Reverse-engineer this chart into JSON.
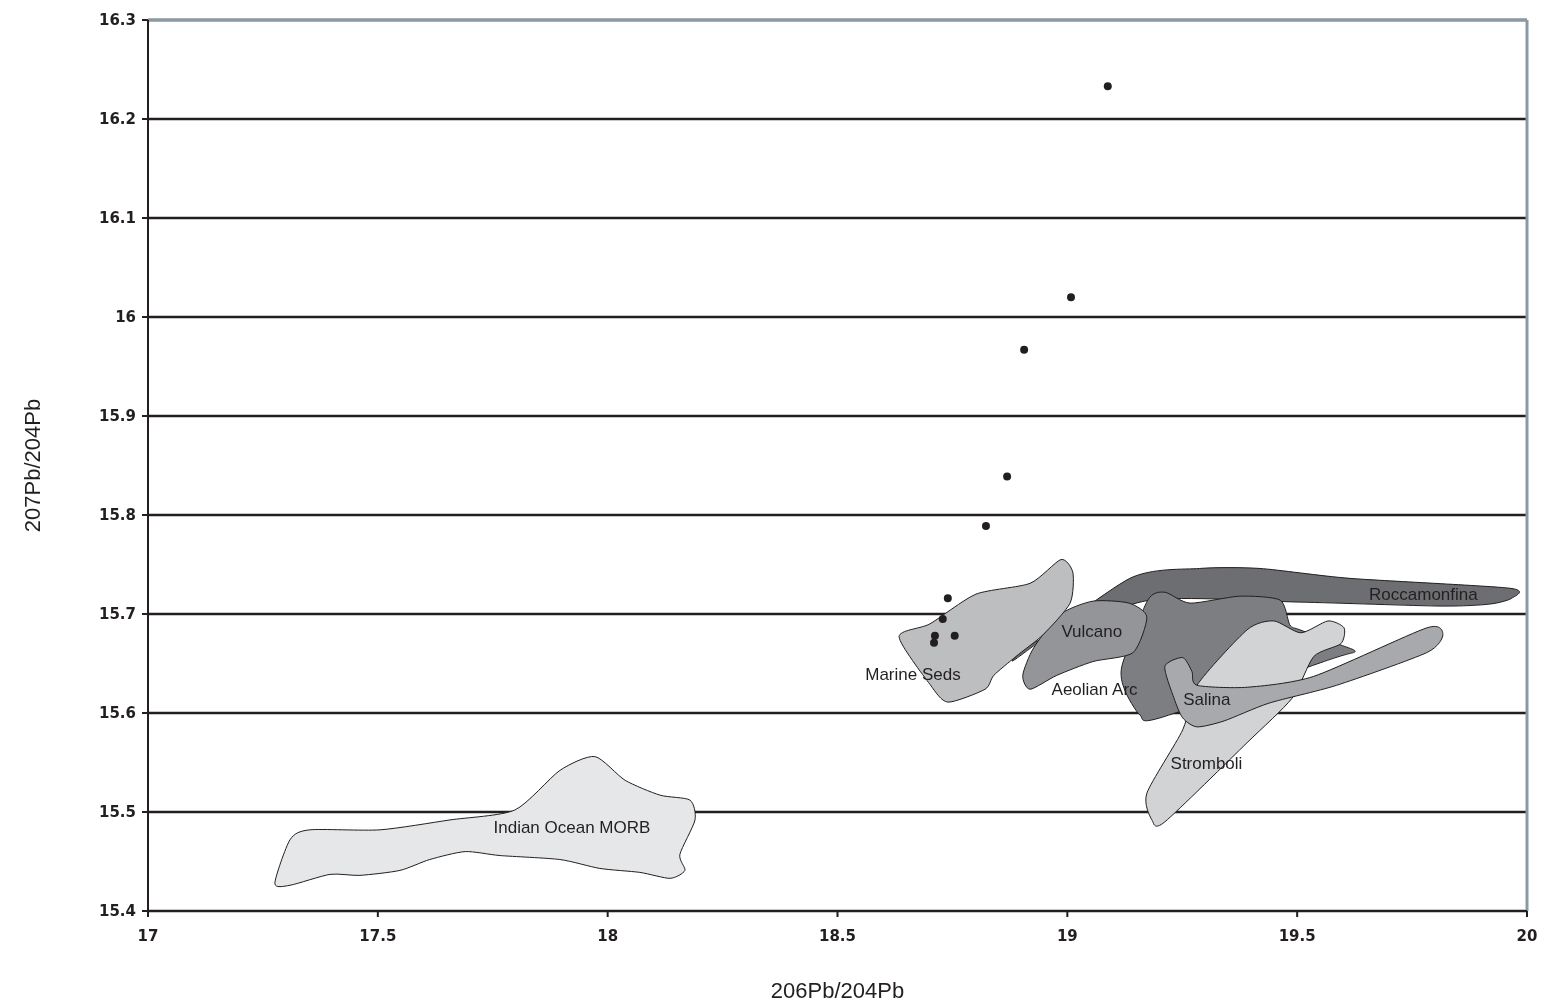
{
  "chart_data": {
    "type": "scatter",
    "xlabel": "206Pb/204Pb",
    "ylabel": "207Pb/204Pb",
    "xlim": [
      17,
      20
    ],
    "ylim": [
      15.4,
      16.3
    ],
    "xticks": [
      17,
      17.5,
      18,
      18.5,
      19,
      19.5,
      20
    ],
    "yticks": [
      15.4,
      15.5,
      15.6,
      15.7,
      15.8,
      15.9,
      16,
      16.1,
      16.2,
      16.3
    ],
    "grid": "y",
    "legend": false,
    "series": [
      {
        "type": "area",
        "name": "Roccamonfina",
        "color": "#6d6e71",
        "x": [
          19.136,
          19.288,
          19.419,
          19.615,
          19.963,
          19.967,
          19.919,
          19.811,
          19.506,
          19.18,
          18.94,
          18.886
        ],
        "values": [
          15.736,
          15.746,
          15.746,
          15.736,
          15.726,
          15.716,
          15.71,
          15.708,
          15.712,
          15.714,
          15.674,
          15.654
        ]
      },
      {
        "type": "area",
        "name": "Aeolian Arc",
        "color": "#7d7e81",
        "x": [
          19.175,
          19.212,
          19.267,
          19.375,
          19.463,
          19.484,
          19.506,
          19.593,
          19.626,
          19.571,
          19.201,
          19.158,
          19.125,
          19.119
        ],
        "values": [
          15.714,
          15.722,
          15.711,
          15.718,
          15.714,
          15.689,
          15.684,
          15.669,
          15.662,
          15.654,
          15.595,
          15.598,
          15.623,
          15.648
        ]
      },
      {
        "type": "area",
        "name": "Vulcano",
        "color": "#939598",
        "x": [
          18.986,
          19.056,
          19.134,
          19.173,
          19.143,
          19.056,
          18.977,
          18.919,
          18.903,
          18.927
        ],
        "values": [
          15.7,
          15.713,
          15.711,
          15.697,
          15.661,
          15.652,
          15.638,
          15.624,
          15.638,
          15.666
        ]
      },
      {
        "type": "area",
        "name": "Marine Seds",
        "color": "#bcbec0",
        "x": [
          18.634,
          18.701,
          18.801,
          18.919,
          18.986,
          19.012,
          19.006,
          18.947,
          18.888,
          18.84,
          18.821,
          18.74,
          18.701
        ],
        "values": [
          15.677,
          15.69,
          15.72,
          15.731,
          15.755,
          15.742,
          15.711,
          15.679,
          15.657,
          15.638,
          15.624,
          15.611,
          15.629
        ]
      },
      {
        "type": "area",
        "name": "Stromboli",
        "color": "#d1d3d4",
        "x": [
          19.282,
          19.391,
          19.449,
          19.508,
          19.567,
          19.602,
          19.595,
          19.536,
          19.489,
          19.391,
          19.212,
          19.184,
          19.173,
          19.251
        ],
        "values": [
          15.628,
          15.684,
          15.693,
          15.681,
          15.693,
          15.686,
          15.67,
          15.657,
          15.615,
          15.57,
          15.49,
          15.492,
          15.519,
          15.583
        ]
      },
      {
        "type": "area",
        "name": "Salina",
        "color": "#a7a9ac",
        "x": [
          19.212,
          19.251,
          19.271,
          19.282,
          19.391,
          19.536,
          19.782,
          19.817,
          19.782,
          19.586,
          19.439,
          19.341,
          19.282,
          19.251,
          19.232
        ],
        "values": [
          15.647,
          15.656,
          15.642,
          15.628,
          15.626,
          15.637,
          15.686,
          15.679,
          15.661,
          15.628,
          15.61,
          15.592,
          15.586,
          15.595,
          15.615
        ]
      },
      {
        "type": "area",
        "name": "Indian Ocean MORB",
        "color": "#e6e7e8",
        "x": [
          17.276,
          17.309,
          17.352,
          17.505,
          17.657,
          17.798,
          17.896,
          17.972,
          18.038,
          18.114,
          18.179,
          18.19,
          18.157,
          18.168,
          18.136,
          18.07,
          17.983,
          17.896,
          17.766,
          17.69,
          17.613,
          17.548,
          17.461,
          17.396,
          17.309
        ],
        "values": [
          15.428,
          15.472,
          15.482,
          15.482,
          15.492,
          15.502,
          15.542,
          15.556,
          15.532,
          15.517,
          15.512,
          15.492,
          15.457,
          15.441,
          15.433,
          15.439,
          15.443,
          15.452,
          15.456,
          15.46,
          15.452,
          15.441,
          15.436,
          15.437,
          15.426
        ]
      },
      {
        "color": "#231f20",
        "marker": "circle",
        "x": [
          19.088,
          19.008,
          18.906,
          18.869,
          18.823,
          18.74,
          18.729,
          18.712,
          18.71,
          18.755
        ],
        "values": [
          16.233,
          16.02,
          15.967,
          15.839,
          15.789,
          15.716,
          15.695,
          15.678,
          15.671,
          15.678
        ]
      }
    ]
  }
}
